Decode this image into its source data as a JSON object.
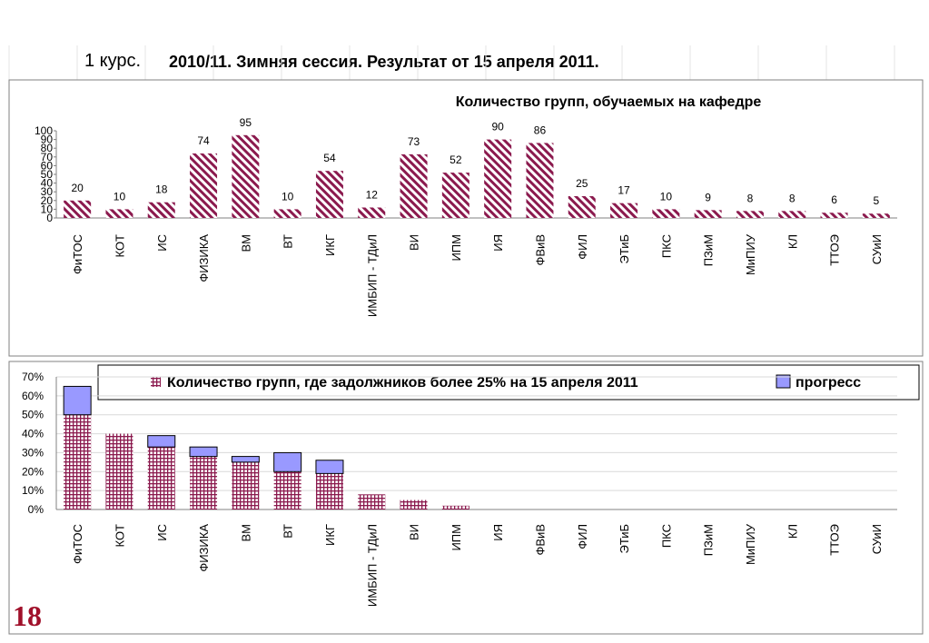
{
  "page": {
    "course": "1 курс.",
    "heading": "2010/11. Зимняя сессия. Результат от 15 апреля 2011.",
    "slide_number": "18"
  },
  "colors": {
    "bar_main": "#8b1a4e",
    "progress_fill": "#9999ff",
    "grid_accent": "#c8c8c8"
  },
  "chart_data": [
    {
      "type": "bar",
      "title": "Количество групп, обучаемых на кафедре",
      "categories": [
        "ФиТОС",
        "КОТ",
        "ИС",
        "ФИЗИКА",
        "ВМ",
        "ВТ",
        "ИКГ",
        "ИМБИП - ТДиЛ",
        "ВИ",
        "ИПМ",
        "ИЯ",
        "ФВиВ",
        "ФИЛ",
        "ЭТиБ",
        "ПКС",
        "ПЗиМ",
        "МиПИУ",
        "КЛ",
        "ТТОЭ",
        "СУиИ"
      ],
      "values": [
        20,
        10,
        18,
        74,
        95,
        10,
        54,
        12,
        73,
        52,
        90,
        86,
        25,
        17,
        10,
        9,
        8,
        8,
        6,
        5
      ],
      "yticks": [
        "0",
        "10",
        "20",
        "30",
        "40",
        "50",
        "60",
        "70",
        "80",
        "90",
        "100"
      ],
      "ylim": [
        0,
        100
      ],
      "pattern": "diagonal-hatch",
      "data_labels": true
    },
    {
      "type": "bar",
      "stacked": true,
      "categories": [
        "ФиТОС",
        "КОТ",
        "ИС",
        "ФИЗИКА",
        "ВМ",
        "ВТ",
        "ИКГ",
        "ИМБИП - ТДиЛ",
        "ВИ",
        "ИПМ",
        "ИЯ",
        "ФВиВ",
        "ФИЛ",
        "ЭТиБ",
        "ПКС",
        "ПЗиМ",
        "МиПИУ",
        "КЛ",
        "ТТОЭ",
        "СУиИ"
      ],
      "series": [
        {
          "name": "Количество групп, где задолжников более  25% на 15 апреля 2011",
          "pattern": "grid-hatch",
          "values": [
            50,
            40,
            33,
            28,
            25,
            20,
            19,
            8,
            5,
            2,
            0,
            0,
            0,
            0,
            0,
            0,
            0,
            0,
            0,
            0
          ]
        },
        {
          "name": "прогресс",
          "pattern": "solid",
          "values": [
            15,
            0,
            6,
            5,
            3,
            10,
            7,
            0,
            0,
            0,
            0,
            0,
            0,
            0,
            0,
            0,
            0,
            0,
            0,
            0
          ]
        }
      ],
      "yticks": [
        "0%",
        "10%",
        "20%",
        "30%",
        "40%",
        "50%",
        "60%",
        "70%"
      ],
      "ylim": [
        0,
        70
      ],
      "legend_position": "top"
    }
  ]
}
